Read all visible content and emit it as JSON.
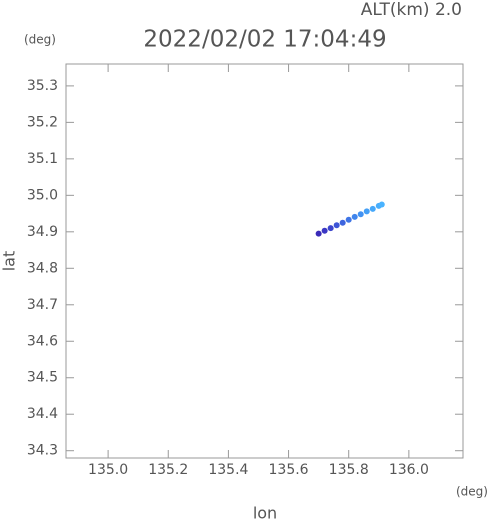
{
  "chart_data": {
    "type": "scatter",
    "title": "2022/02/02 17:04:49",
    "annotation": "ALT(km) 2.0",
    "y_unit": "(deg)",
    "x_unit": "(deg)",
    "xlabel": "lon",
    "ylabel": "lat",
    "xlim": [
      134.86,
      136.18
    ],
    "ylim": [
      34.28,
      35.36
    ],
    "xticks": [
      {
        "value": 135.0,
        "label": "135.0"
      },
      135.2,
      135.4,
      135.6,
      135.8,
      {
        "value": 136.0,
        "label": "136.0"
      }
    ],
    "yticks": [
      35.3,
      35.2,
      35.1,
      {
        "value": 35.0,
        "label": "35.0"
      },
      34.9,
      34.8,
      34.7,
      34.6,
      34.5,
      34.4,
      34.3
    ],
    "x": [
      135.7,
      135.72,
      135.74,
      135.76,
      135.78,
      135.8,
      135.82,
      135.84,
      135.86,
      135.88,
      135.9,
      135.91
    ],
    "values": [
      34.895,
      34.903,
      34.91,
      34.918,
      34.925,
      34.933,
      34.941,
      34.948,
      34.956,
      34.963,
      34.971,
      34.975
    ],
    "colors": [
      "#3a2bb8",
      "#3b37c4",
      "#3c45cc",
      "#3d55d6",
      "#3e65de",
      "#3f75e6",
      "#4085ec",
      "#4292f2",
      "#449ff6",
      "#46a8fa",
      "#48aefc",
      "#4ab3ff"
    ],
    "frame_color": "#999999",
    "text_color": "#555555"
  }
}
